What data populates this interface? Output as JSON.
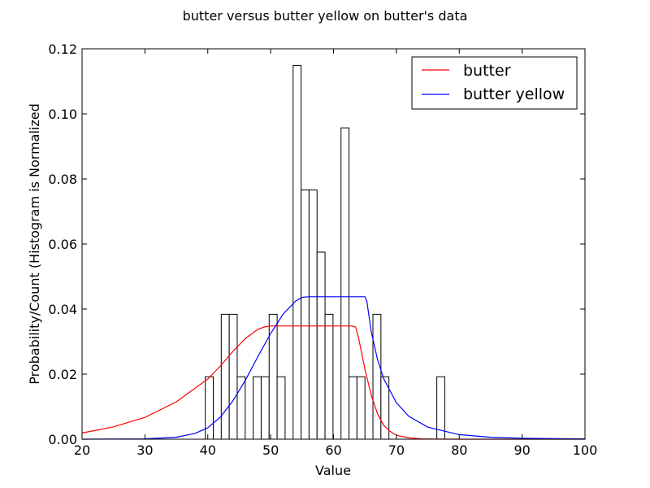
{
  "chart_data": {
    "type": "bar",
    "title": "butter versus butter yellow on butter's data",
    "xlabel": "Value",
    "ylabel": "Probability/Count (Histogram is Normalized",
    "xlim": [
      20,
      100
    ],
    "ylim": [
      0,
      0.12
    ],
    "xticks": [
      "20",
      "30",
      "40",
      "50",
      "60",
      "70",
      "80",
      "90",
      "100"
    ],
    "yticks": [
      "0.00",
      "0.02",
      "0.04",
      "0.06",
      "0.08",
      "0.10",
      "0.12"
    ],
    "grid": false,
    "legend_position": "top-right",
    "histogram": {
      "bin_width": 1.27,
      "edges": [
        39.6,
        40.87,
        42.14,
        43.41,
        44.68,
        45.95,
        47.22,
        48.49,
        49.76,
        51.03,
        52.3,
        53.57,
        54.84,
        56.11,
        57.38,
        58.65,
        59.92,
        61.19,
        62.46,
        63.73,
        65.0,
        66.27,
        67.54,
        68.81,
        70.08,
        71.35,
        72.62,
        73.89,
        75.16,
        76.43,
        77.7
      ],
      "values": [
        0.0192,
        0,
        0.0384,
        0.0384,
        0.0192,
        0,
        0.0192,
        0.0192,
        0.0384,
        0.0192,
        0,
        0.1149,
        0.0766,
        0.0766,
        0.0575,
        0.0384,
        0,
        0.0957,
        0.0192,
        0.0192,
        0,
        0.0384,
        0.0192,
        0,
        0,
        0,
        0,
        0,
        0,
        0.0192
      ],
      "fill": "#ffffff",
      "stroke": "#000000"
    },
    "series": [
      {
        "name": "butter",
        "color": "#ff0000",
        "x": [
          20,
          25,
          30,
          35,
          40,
          42,
          44,
          46,
          48,
          49,
          50,
          52,
          55,
          58,
          60,
          62,
          63,
          63.5,
          64,
          65,
          66,
          67,
          68,
          69,
          70,
          72,
          74,
          76,
          80,
          85,
          90,
          100
        ],
        "y": [
          0.0019,
          0.0038,
          0.0067,
          0.0115,
          0.0185,
          0.0225,
          0.027,
          0.031,
          0.0338,
          0.0345,
          0.0348,
          0.0348,
          0.0348,
          0.0348,
          0.0348,
          0.0348,
          0.0348,
          0.0345,
          0.031,
          0.0215,
          0.0135,
          0.0078,
          0.0042,
          0.0024,
          0.0012,
          0.0004,
          0.0001,
          3e-05,
          0,
          0,
          0,
          0
        ]
      },
      {
        "name": "butter yellow",
        "color": "#0000ff",
        "x": [
          20,
          30,
          35,
          38,
          40,
          42,
          44,
          46,
          48,
          50,
          52,
          54,
          55,
          56,
          60,
          64,
          65,
          65.3,
          66,
          67,
          68,
          70,
          72,
          75,
          80,
          85,
          90,
          95,
          100
        ],
        "y": [
          0,
          0.0001,
          0.0006,
          0.0018,
          0.0035,
          0.0068,
          0.0118,
          0.0182,
          0.0255,
          0.0325,
          0.0385,
          0.0425,
          0.0436,
          0.0438,
          0.0438,
          0.0438,
          0.0438,
          0.0425,
          0.033,
          0.0245,
          0.0185,
          0.0112,
          0.007,
          0.0037,
          0.0014,
          0.0006,
          0.0003,
          0.00015,
          0.0001
        ]
      }
    ]
  }
}
